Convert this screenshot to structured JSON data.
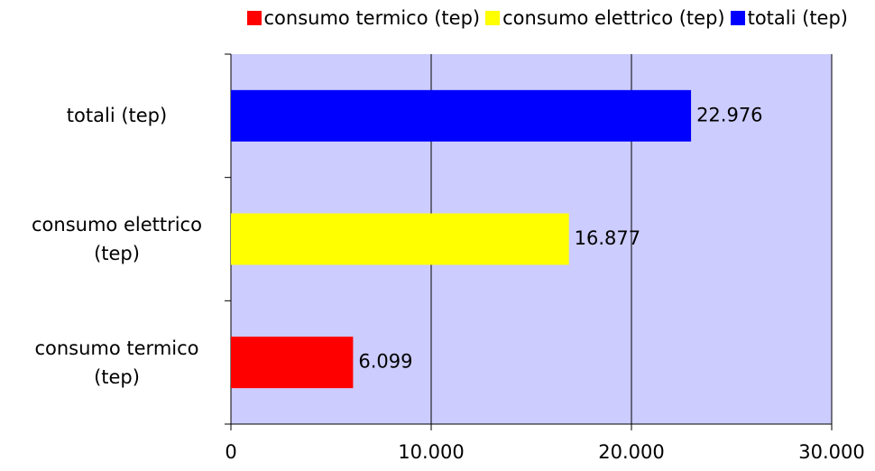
{
  "chart_data": {
    "type": "bar",
    "orientation": "horizontal",
    "categories": [
      "consumo termico (tep)",
      "consumo elettrico (tep)",
      "totali (tep)"
    ],
    "values": [
      6099,
      16877,
      22976
    ],
    "value_labels": [
      "6.099",
      "16.877",
      "22.976"
    ],
    "colors": [
      "#ff0000",
      "#ffff00",
      "#0000ff"
    ],
    "xlim": [
      0,
      30000
    ],
    "xticks": [
      0,
      {
        "value": 10000,
        "label": "10.000"
      },
      {
        "value": 20000,
        "label": "20.000"
      },
      {
        "value": 30000,
        "label": "30.000"
      }
    ],
    "grid": true,
    "legend": "top"
  }
}
